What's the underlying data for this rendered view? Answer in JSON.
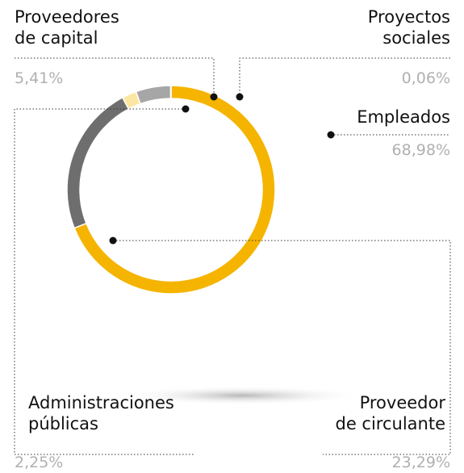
{
  "chart_data": {
    "type": "pie",
    "donut": true,
    "categories": [
      "Empleados",
      "Proveedor\nde circulante",
      "Administraciones\npúblicas",
      "Proveedores\nde capital",
      "Proyectos\nsociales"
    ],
    "values": [
      68.98,
      23.29,
      2.25,
      5.41,
      0.06
    ],
    "value_labels": [
      "68,98%",
      "23,29%",
      "2,25%",
      "5,41%",
      "0,06%"
    ],
    "colors": [
      "#f5b400",
      "#6e6e6e",
      "#fbe7a1",
      "#a6a6a6",
      "#a6a6a6"
    ]
  }
}
